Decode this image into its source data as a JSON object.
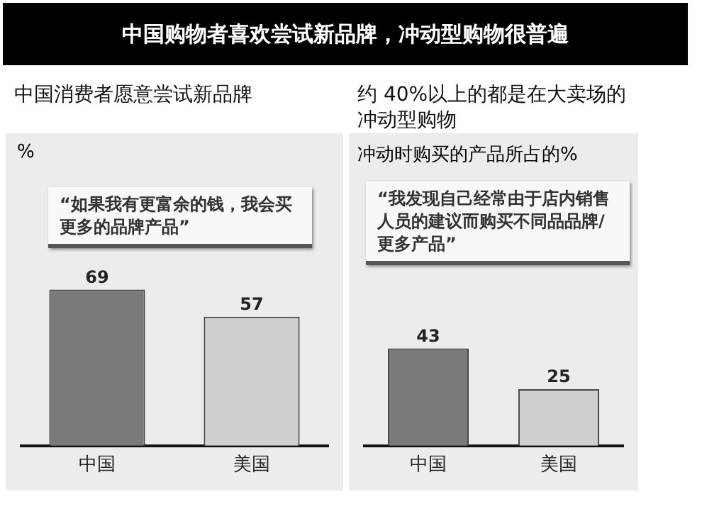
{
  "chart_data": [
    {
      "type": "other",
      "title": "中国购物者喜欢尝试新品牌，冲动型购物很普遍"
    },
    {
      "type": "bar",
      "title": "中国消费者愿意尝试新品牌",
      "ylabel": "%",
      "annotations": [
        "“如果我有更富余的钱，我会买更多的品牌产品”"
      ],
      "categories": [
        "中国",
        "美国"
      ],
      "values": [
        69,
        57
      ],
      "colors": [
        "#7a7a7a",
        "#cfcfcf"
      ],
      "data_labels": true,
      "tick_labels": "x"
    },
    {
      "type": "bar",
      "title": "约 40%以上的都是在大卖场的冲动型购物",
      "subtitle": "冲动时购买的产品所占的%",
      "annotations": [
        "“我发现自己经常由于店内销售人员的建议而购买不同品品牌/更多产品”"
      ],
      "categories": [
        "中国",
        "美国"
      ],
      "values": [
        43,
        25
      ],
      "colors": [
        "#7a7a7a",
        "#cfcfcf"
      ],
      "data_labels": true,
      "tick_labels": "x"
    }
  ]
}
